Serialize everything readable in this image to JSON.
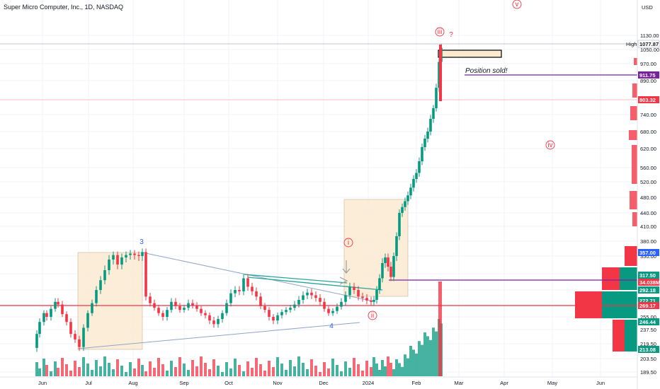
{
  "title": "Super Micro Computer, Inc., 1D, NASDAQ",
  "currency": "USD",
  "chart_data": {
    "type": "candlestick",
    "ylim": [
      180,
      1170
    ],
    "y_ticks": [
      1130.0,
      1050.0,
      970.0,
      890.0,
      810.0,
      740.0,
      680.0,
      620.0,
      560.0,
      520.0,
      480.0,
      440.0,
      410.0,
      380.0,
      350.0,
      325.0,
      300.0,
      277.5,
      255.0,
      237.5,
      219.5,
      203.5,
      189.5
    ],
    "x_ticks": [
      "Jun",
      "Jul",
      "Aug",
      "Sep",
      "Oct",
      "Nov",
      "Dec",
      "2024",
      "Feb",
      "Mar",
      "Apr",
      "May",
      "Jun"
    ],
    "high_label": "High",
    "price_labels": [
      {
        "value": "1077.87",
        "color": "#ffffff",
        "text_color": "#131722"
      },
      {
        "value": "911.75",
        "color": "#7b1fa2",
        "text_color": "#ffffff"
      },
      {
        "value": "803.32",
        "color": "#f23645",
        "text_color": "#ffffff"
      },
      {
        "value": "357.00",
        "color": "#2962ff",
        "text_color": "#ffffff"
      },
      {
        "value": "317.50",
        "color": "#089981",
        "text_color": "#ffffff"
      },
      {
        "value": "34.038M",
        "color": "#f23645",
        "text_color": "#ffffff"
      },
      {
        "value": "292.18",
        "color": "#089981",
        "text_color": "#ffffff"
      },
      {
        "value": "272.71",
        "color": "#089981",
        "text_color": "#ffffff"
      },
      {
        "value": "269.17",
        "color": "#f23645",
        "text_color": "#ffffff"
      },
      {
        "value": "246.44",
        "color": "#089981",
        "text_color": "#ffffff"
      },
      {
        "value": "213.08",
        "color": "#089981",
        "text_color": "#ffffff"
      }
    ],
    "annotations": [
      {
        "text": "3",
        "color": "#2962ff"
      },
      {
        "text": "4",
        "color": "#2962ff"
      },
      {
        "text": "i",
        "color": "#f23645",
        "circled": true
      },
      {
        "text": "ii",
        "color": "#f23645",
        "circled": true
      },
      {
        "text": "iii",
        "color": "#f23645",
        "circled": true
      },
      {
        "text": "?",
        "color": "#f23645"
      },
      {
        "text": "iv",
        "color": "#f23645",
        "circled": true
      },
      {
        "text": "v",
        "color": "#f23645",
        "circled": true
      },
      {
        "text": "Position sold!",
        "color": "#131722"
      }
    ],
    "key_levels": [
      {
        "price": 911.75,
        "color": "#7b1fa2"
      },
      {
        "price": 803.32,
        "color": "#f23645"
      },
      {
        "price": 317.5,
        "color": "#7b1fa2"
      },
      {
        "price": 269.17,
        "color": "#f23645"
      }
    ]
  }
}
